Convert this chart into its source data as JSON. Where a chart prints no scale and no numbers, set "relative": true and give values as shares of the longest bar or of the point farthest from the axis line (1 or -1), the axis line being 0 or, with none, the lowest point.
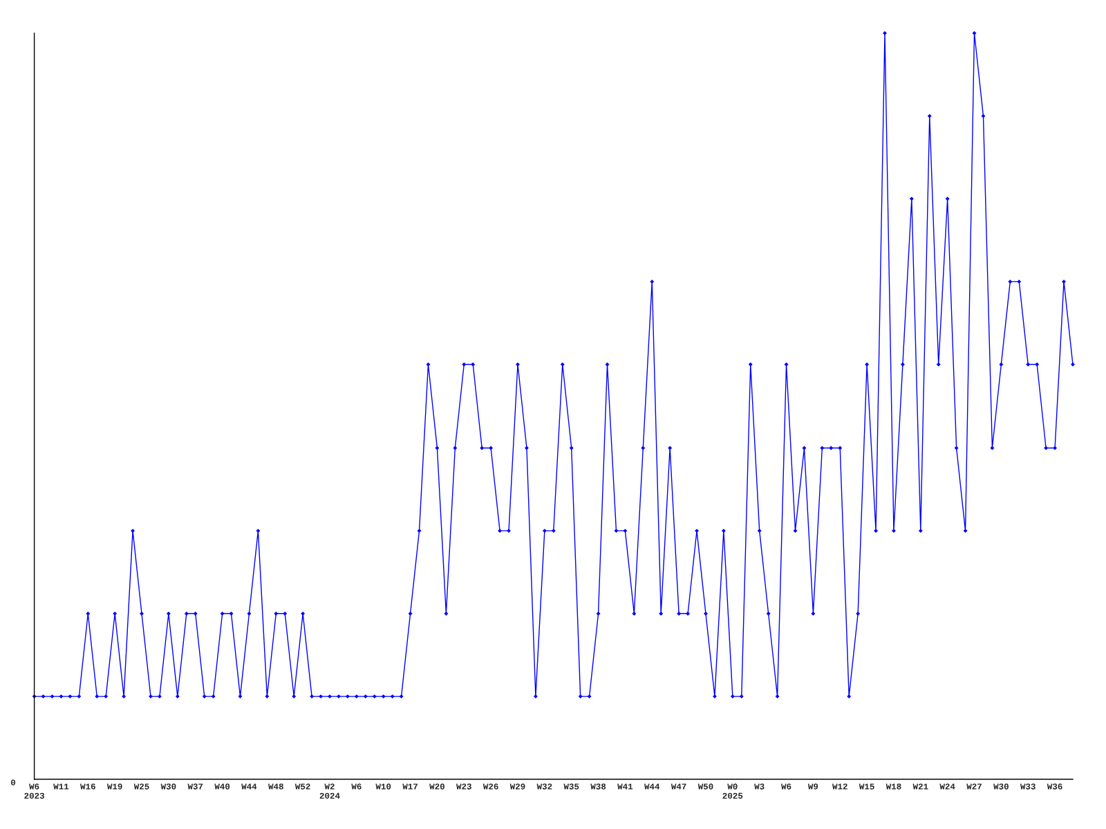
{
  "chart_data": {
    "type": "line",
    "relative": true,
    "categories": [
      "W6\n2023",
      null,
      null,
      "W11",
      null,
      null,
      "W16",
      null,
      null,
      "W19",
      null,
      null,
      "W25",
      null,
      null,
      "W30",
      null,
      null,
      "W37",
      null,
      null,
      "W40",
      null,
      null,
      "W44",
      null,
      null,
      "W48",
      null,
      null,
      "W52",
      null,
      null,
      "W2\n2024",
      null,
      null,
      "W6",
      null,
      null,
      "W10",
      null,
      null,
      "W17",
      null,
      null,
      "W20",
      null,
      null,
      "W23",
      null,
      null,
      "W26",
      null,
      null,
      "W29",
      null,
      null,
      "W32",
      null,
      null,
      "W35",
      null,
      null,
      "W38",
      null,
      null,
      "W41",
      null,
      null,
      "W44",
      null,
      null,
      "W47",
      null,
      null,
      "W50",
      null,
      null,
      "W0\n2025",
      null,
      null,
      "W3",
      null,
      null,
      "W6",
      null,
      null,
      "W9",
      null,
      null,
      "W12",
      null,
      null,
      "W15",
      null,
      null,
      "W18",
      null,
      null,
      "W21",
      null,
      null,
      "W24",
      null,
      null,
      "W27",
      null,
      null,
      "W30",
      null,
      null,
      "W33",
      null,
      null,
      "W36",
      null,
      null
    ],
    "series": [
      {
        "color": "#0000ff",
        "values": [
          0.111,
          0.111,
          0.111,
          0.111,
          0.111,
          0.111,
          0.222,
          0.111,
          0.111,
          0.222,
          0.111,
          0.333,
          0.222,
          0.111,
          0.111,
          0.222,
          0.111,
          0.222,
          0.222,
          0.111,
          0.111,
          0.222,
          0.222,
          0.111,
          0.222,
          0.333,
          0.111,
          0.222,
          0.222,
          0.111,
          0.222,
          0.111,
          0.111,
          0.111,
          0.111,
          0.111,
          0.111,
          0.111,
          0.111,
          0.111,
          0.111,
          0.111,
          0.222,
          0.333,
          0.556,
          0.444,
          0.222,
          0.444,
          0.556,
          0.556,
          0.444,
          0.444,
          0.333,
          0.333,
          0.556,
          0.444,
          0.111,
          0.333,
          0.333,
          0.556,
          0.444,
          0.111,
          0.111,
          0.222,
          0.556,
          0.333,
          0.333,
          0.222,
          0.444,
          0.667,
          0.222,
          0.444,
          0.222,
          0.222,
          0.333,
          0.222,
          0.111,
          0.333,
          0.111,
          0.111,
          0.556,
          0.333,
          0.222,
          0.111,
          0.556,
          0.333,
          0.444,
          0.222,
          0.444,
          0.444,
          0.444,
          0.111,
          0.222,
          0.556,
          0.333,
          1,
          0.333,
          0.556,
          0.778,
          0.333,
          0.889,
          0.556,
          0.778,
          0.444,
          0.333,
          1,
          0.889,
          0.444,
          0.556,
          0.667,
          0.667,
          0.556,
          0.556,
          0.444,
          0.444,
          0.667,
          0.556
        ]
      }
    ],
    "annotations": [
      "0"
    ],
    "marker": "diamond",
    "line_style": "solid",
    "grid": false,
    "legend": false
  }
}
